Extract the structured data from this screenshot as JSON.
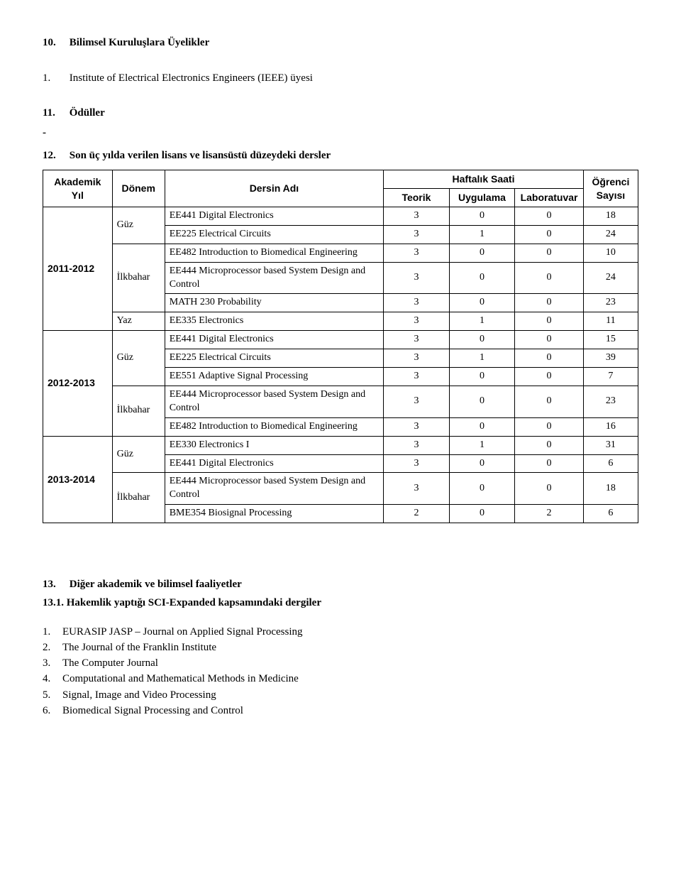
{
  "section10": {
    "num": "10.",
    "title": "Bilimsel Kuruluşlara Üyelikler",
    "item1_num": "1.",
    "item1_text": "Institute of Electrical Electronics Engineers (IEEE) üyesi"
  },
  "section11": {
    "num": "11.",
    "title": "Ödüller",
    "dash": "-"
  },
  "section12": {
    "num": "12.",
    "title": "Son üç yılda verilen lisans ve lisansüstü düzeydeki dersler"
  },
  "table": {
    "headers": {
      "yil": "Akademik Yıl",
      "donem": "Dönem",
      "ders": "Dersin Adı",
      "haftalik": "Haftalık Saati",
      "teorik": "Teorik",
      "uygulama": "Uygulama",
      "lab": "Laboratuvar",
      "ogrenci": "Öğrenci Sayısı"
    },
    "groups": [
      {
        "yil": "2011-2012",
        "sub": [
          {
            "donem": "Güz",
            "rows": [
              {
                "ders": "EE441 Digital Electronics",
                "t": "3",
                "u": "0",
                "l": "0",
                "s": "18"
              },
              {
                "ders": "EE225 Electrical Circuits",
                "t": "3",
                "u": "1",
                "l": "0",
                "s": "24"
              }
            ]
          },
          {
            "donem": "İlkbahar",
            "rows": [
              {
                "ders": "EE482 Introduction to Biomedical Engineering",
                "t": "3",
                "u": "0",
                "l": "0",
                "s": "10"
              },
              {
                "ders": "EE444 Microprocessor based System Design and Control",
                "t": "3",
                "u": "0",
                "l": "0",
                "s": "24"
              },
              {
                "ders": "MATH 230 Probability",
                "t": "3",
                "u": "0",
                "l": "0",
                "s": "23"
              }
            ]
          },
          {
            "donem": "Yaz",
            "rows": [
              {
                "ders": "EE335 Electronics",
                "t": "3",
                "u": "1",
                "l": "0",
                "s": "11"
              }
            ]
          }
        ]
      },
      {
        "yil": "2012-2013",
        "sub": [
          {
            "donem": "Güz",
            "rows": [
              {
                "ders": "EE441 Digital Electronics",
                "t": "3",
                "u": "0",
                "l": "0",
                "s": "15"
              },
              {
                "ders": "EE225 Electrical Circuits",
                "t": "3",
                "u": "1",
                "l": "0",
                "s": "39"
              },
              {
                "ders": "EE551 Adaptive Signal Processing",
                "t": "3",
                "u": "0",
                "l": "0",
                "s": "7"
              }
            ]
          },
          {
            "donem": "İlkbahar",
            "rows": [
              {
                "ders": "EE444 Microprocessor based System Design and Control",
                "t": "3",
                "u": "0",
                "l": "0",
                "s": "23"
              },
              {
                "ders": "EE482 Introduction to Biomedical Engineering",
                "t": "3",
                "u": "0",
                "l": "0",
                "s": "16"
              }
            ]
          }
        ]
      },
      {
        "yil": "2013-2014",
        "sub": [
          {
            "donem": "Güz",
            "rows": [
              {
                "ders": "EE330 Electronics I",
                "t": "3",
                "u": "1",
                "l": "0",
                "s": "31"
              },
              {
                "ders": "EE441 Digital Electronics",
                "t": "3",
                "u": "0",
                "l": "0",
                "s": "6"
              }
            ]
          },
          {
            "donem": "İlkbahar",
            "rows": [
              {
                "ders": "EE444 Microprocessor based System Design and Control",
                "t": "3",
                "u": "0",
                "l": "0",
                "s": "18"
              },
              {
                "ders": "BME354 Biosignal Processing",
                "t": "2",
                "u": "0",
                "l": "2",
                "s": "6"
              }
            ]
          }
        ]
      }
    ]
  },
  "section13": {
    "num": "13.",
    "title": "Diğer akademik ve bilimsel faaliyetler",
    "sub_num": "13.1.",
    "sub_title": "Hakemlik yaptığı SCI-Expanded kapsamındaki dergiler",
    "items": [
      "EURASIP JASP – Journal on Applied Signal Processing",
      "The Journal of the Franklin Institute",
      "The Computer Journal",
      "Computational and Mathematical Methods in Medicine",
      "Signal, Image and Video Processing",
      "Biomedical Signal Processing and Control"
    ]
  }
}
